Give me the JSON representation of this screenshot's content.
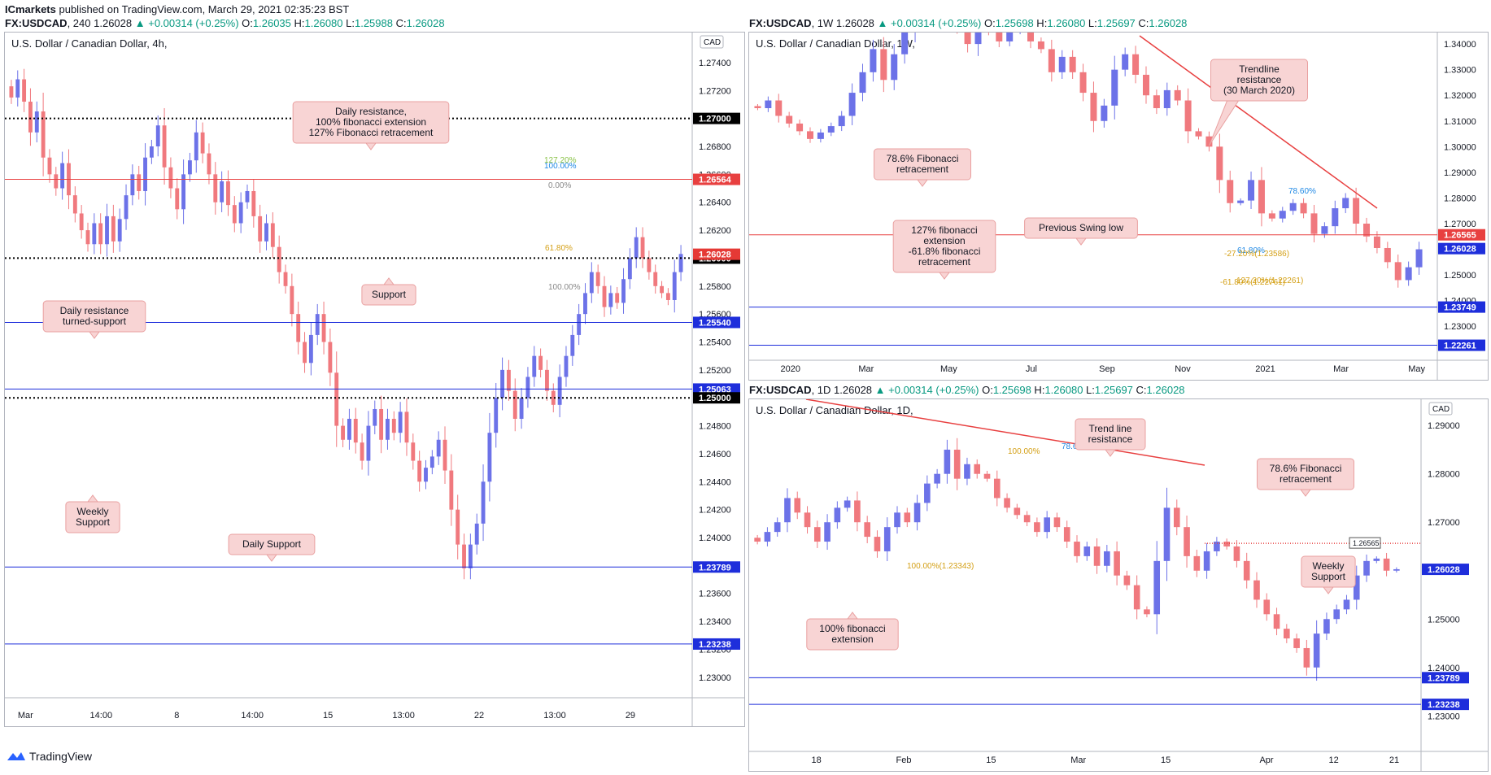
{
  "header": {
    "user": "ICmarkets",
    "text": " published on TradingView.com, March 29, 2021 02:35:23 BST"
  },
  "footer": {
    "brand": "TradingView"
  },
  "colors": {
    "up": "#6c72e8",
    "down": "#f0797e",
    "support": "#1e2edb",
    "resistance": "#e84040",
    "callout_bg": "#f8d4d4",
    "callout_border": "#e9a0a0"
  },
  "chart_data": [
    {
      "type": "candlestick",
      "id": "h4",
      "symbol": "FX:USDCAD",
      "timeframe": "240",
      "ohlc_text": {
        "o": "1.26035",
        "h": "1.26080",
        "l": "1.25988",
        "c": "1.26028"
      },
      "change": "+0.00314 (+0.25%)",
      "title": "U.S. Dollar / Canadian Dollar, 4h,",
      "currency": "CAD",
      "ylim": [
        1.229,
        1.2758
      ],
      "y_ticks": [
        "1.27400",
        "1.27200",
        "1.27000",
        "1.26800",
        "1.26600",
        "1.26400",
        "1.26200",
        "1.26000",
        "1.25800",
        "1.25600",
        "1.25400",
        "1.25200",
        "1.25000",
        "1.24800",
        "1.24600",
        "1.24400",
        "1.24200",
        "1.24000",
        "1.23800",
        "1.23600",
        "1.23400",
        "1.23200",
        "1.23000"
      ],
      "x_ticks": [
        "Mar",
        "14:00",
        "8",
        "14:00",
        "15",
        "13:00",
        "22",
        "13:00",
        "29"
      ],
      "x_tick_pos": [
        0.03,
        0.14,
        0.25,
        0.36,
        0.47,
        0.58,
        0.69,
        0.8,
        0.91
      ],
      "levels": [
        {
          "value": 1.27,
          "label": "1.27000",
          "style": "dotted",
          "color": "#000000"
        },
        {
          "value": 1.26564,
          "label": "1.26564",
          "style": "solid",
          "color": "#e84040"
        },
        {
          "value": 1.26,
          "label": "1.26000",
          "style": "dotted",
          "color": "#000000"
        },
        {
          "value": 1.2554,
          "label": "1.25540",
          "style": "solid",
          "color": "#1e2edb"
        },
        {
          "value": 1.25063,
          "label": "1.25063",
          "style": "solid",
          "color": "#1e2edb"
        },
        {
          "value": 1.25,
          "label": "1.25000",
          "style": "dotted",
          "color": "#000000"
        },
        {
          "value": 1.23789,
          "label": "1.23789",
          "style": "solid",
          "color": "#1e2edb"
        },
        {
          "value": 1.23238,
          "label": "1.23238",
          "style": "solid",
          "color": "#1e2edb"
        }
      ],
      "last_price": {
        "value": 1.26028,
        "label": "1.26028"
      },
      "fib_labels": [
        "127.20%",
        "100.00%",
        "0.00%",
        "100.00%",
        "61.80%"
      ],
      "callouts": [
        {
          "lines": [
            "Daily resistance,",
            "100% fibonacci extension",
            "127% Fibonacci retracement"
          ]
        },
        {
          "lines": [
            "Support"
          ]
        },
        {
          "lines": [
            "Daily resistance",
            "turned-support"
          ]
        },
        {
          "lines": [
            "Weekly",
            "Support"
          ]
        },
        {
          "lines": [
            "Daily Support"
          ]
        }
      ],
      "series": [
        1.2715,
        1.2728,
        1.2712,
        1.269,
        1.2705,
        1.2672,
        1.266,
        1.265,
        1.2668,
        1.2645,
        1.2632,
        1.262,
        1.261,
        1.2625,
        1.261,
        1.263,
        1.2612,
        1.2628,
        1.2645,
        1.266,
        1.2648,
        1.2672,
        1.268,
        1.2695,
        1.2665,
        1.265,
        1.2635,
        1.266,
        1.267,
        1.269,
        1.2675,
        1.266,
        1.264,
        1.2655,
        1.2638,
        1.2625,
        1.264,
        1.2648,
        1.263,
        1.2612,
        1.2625,
        1.2608,
        1.259,
        1.258,
        1.256,
        1.254,
        1.2525,
        1.2545,
        1.256,
        1.254,
        1.2518,
        1.248,
        1.247,
        1.2485,
        1.2468,
        1.2455,
        1.248,
        1.2492,
        1.247,
        1.2485,
        1.2475,
        1.249,
        1.2468,
        1.2455,
        1.244,
        1.245,
        1.2458,
        1.247,
        1.2448,
        1.242,
        1.2395,
        1.2378,
        1.2395,
        1.241,
        1.244,
        1.2475,
        1.25,
        1.252,
        1.2505,
        1.2485,
        1.25,
        1.2515,
        1.253,
        1.252,
        1.2505,
        1.2495,
        1.2515,
        1.253,
        1.2545,
        1.256,
        1.2575,
        1.259,
        1.258,
        1.2565,
        1.2575,
        1.2568,
        1.2585,
        1.26,
        1.2615,
        1.26,
        1.259,
        1.258,
        1.2575,
        1.257,
        1.259,
        1.2603
      ]
    },
    {
      "type": "candlestick",
      "id": "w1",
      "symbol": "FX:USDCAD",
      "timeframe": "1W",
      "ohlc_text": {
        "o": "1.25698",
        "h": "1.26080",
        "l": "1.25697",
        "c": "1.26028"
      },
      "change": "+0.00314 (+0.25%)",
      "title": "U.S. Dollar / Canadian Dollar, 1W,",
      "ylim": [
        1.2193,
        1.3432
      ],
      "y_ticks": [
        "1.34000",
        "1.33000",
        "1.32000",
        "1.31000",
        "1.30000",
        "1.29000",
        "1.28000",
        "1.27000",
        "1.26000",
        "1.25000",
        "1.24000",
        "1.23000"
      ],
      "x_ticks": [
        "2020",
        "Mar",
        "May",
        "Jul",
        "Sep",
        "Nov",
        "2021",
        "Mar",
        "May"
      ],
      "x_tick_pos": [
        0.06,
        0.17,
        0.29,
        0.41,
        0.52,
        0.63,
        0.75,
        0.86,
        0.97
      ],
      "levels": [
        {
          "value": 1.26565,
          "label": "1.26565",
          "style": "solid",
          "color": "#e84040"
        },
        {
          "value": 1.23749,
          "label": "1.23749",
          "style": "solid",
          "color": "#1e2edb"
        },
        {
          "value": 1.22261,
          "label": "1.22261",
          "style": "solid",
          "color": "#1e2edb"
        }
      ],
      "last_price": {
        "value": 1.26028,
        "label": "1.26028"
      },
      "fib_labels": [
        "78.60%",
        "61.80%",
        "-27.20%(1.23586)",
        "127.20%(1.22261)",
        "-61.80%(1.22761)"
      ],
      "callouts": [
        {
          "lines": [
            "Trendline",
            "resistance",
            "(30 March 2020)"
          ]
        },
        {
          "lines": [
            "78.6% Fibonacci",
            "retracement"
          ]
        },
        {
          "lines": [
            "127% fibonacci",
            "extension",
            "-61.8% fibonacci",
            "retracement"
          ]
        },
        {
          "lines": [
            "Previous Swing low"
          ]
        }
      ],
      "series": [
        1.315,
        1.318,
        1.312,
        1.309,
        1.306,
        1.303,
        1.3055,
        1.308,
        1.312,
        1.321,
        1.329,
        1.338,
        1.326,
        1.336,
        1.345,
        1.356,
        1.362,
        1.37,
        1.358,
        1.348,
        1.34,
        1.352,
        1.346,
        1.341,
        1.345,
        1.347,
        1.341,
        1.338,
        1.329,
        1.335,
        1.329,
        1.321,
        1.31,
        1.316,
        1.33,
        1.336,
        1.328,
        1.32,
        1.315,
        1.322,
        1.318,
        1.306,
        1.304,
        1.3,
        1.287,
        1.278,
        1.279,
        1.287,
        1.274,
        1.272,
        1.275,
        1.278,
        1.274,
        1.266,
        1.269,
        1.276,
        1.28,
        1.27,
        1.265,
        1.2605,
        1.255,
        1.248,
        1.253,
        1.26
      ]
    },
    {
      "type": "candlestick",
      "id": "d1",
      "symbol": "FX:USDCAD",
      "timeframe": "1D",
      "ohlc_text": {
        "o": "1.25698",
        "h": "1.26080",
        "l": "1.25697",
        "c": "1.26028"
      },
      "change": "+0.00314 (+0.25%)",
      "title": "U.S. Dollar / Canadian Dollar, 1D,",
      "currency": "CAD",
      "ylim": [
        1.224,
        1.2944
      ],
      "y_ticks": [
        "1.29000",
        "1.28000",
        "1.27000",
        "1.26000",
        "1.25000",
        "1.24000",
        "1.23000"
      ],
      "x_ticks": [
        "18",
        "Feb",
        "15",
        "Mar",
        "15",
        "Apr",
        "12",
        "21"
      ],
      "x_tick_pos": [
        0.1,
        0.23,
        0.36,
        0.49,
        0.62,
        0.77,
        0.87,
        0.96
      ],
      "levels": [
        {
          "value": 1.23789,
          "label": "1.23789",
          "style": "solid",
          "color": "#1e2edb"
        },
        {
          "value": 1.23238,
          "label": "1.23238",
          "style": "solid",
          "color": "#1e2edb"
        }
      ],
      "last_price": {
        "value": 1.26028,
        "label": "1.26028"
      },
      "fib_tag": "1.26565",
      "fib_labels": [
        "100.00%",
        "78.60%",
        "100.00%(1.23343)"
      ],
      "callouts": [
        {
          "lines": [
            "Trend line",
            "resistance"
          ]
        },
        {
          "lines": [
            "78.6% Fibonacci",
            "retracement"
          ]
        },
        {
          "lines": [
            "Weekly",
            "Support"
          ]
        },
        {
          "lines": [
            "100% fibonacci",
            "extension"
          ]
        }
      ],
      "series": [
        1.266,
        1.268,
        1.27,
        1.275,
        1.272,
        1.269,
        1.266,
        1.27,
        1.273,
        1.2745,
        1.27,
        1.267,
        1.264,
        1.269,
        1.272,
        1.27,
        1.274,
        1.278,
        1.28,
        1.285,
        1.279,
        1.282,
        1.28,
        1.279,
        1.275,
        1.273,
        1.2715,
        1.27,
        1.268,
        1.271,
        1.269,
        1.266,
        1.263,
        1.265,
        1.261,
        1.264,
        1.259,
        1.257,
        1.252,
        1.251,
        1.262,
        1.273,
        1.269,
        1.263,
        1.26,
        1.264,
        1.266,
        1.265,
        1.262,
        1.258,
        1.254,
        1.251,
        1.248,
        1.246,
        1.244,
        1.24,
        1.247,
        1.25,
        1.252,
        1.254,
        1.259,
        1.262,
        1.2625,
        1.26,
        1.2603
      ]
    }
  ]
}
